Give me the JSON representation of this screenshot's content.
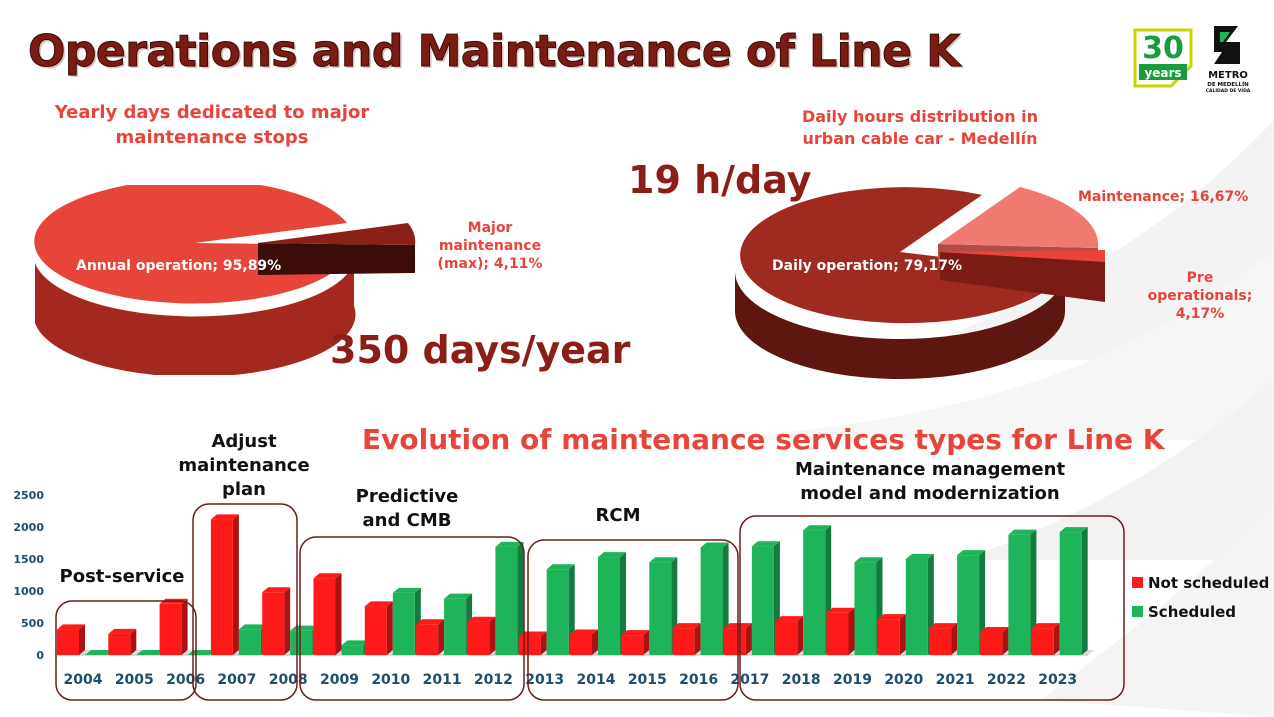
{
  "title": "Operations and Maintenance of Line K",
  "logos": {
    "anniversary_number": "30",
    "anniversary_word": "years",
    "metro_name_1": "METRO",
    "metro_name_2": "DE MEDELLÍN",
    "metro_tagline": "CALIDAD DE VIDA"
  },
  "colors": {
    "not_scheduled": "#ff1a1a",
    "scheduled": "#1eb45a",
    "pie_red": "#e8453a",
    "pie_dark": "#9e2a20",
    "pie_pink": "#ee7a70",
    "title": "#7a1c14",
    "frame": "#6b1e1a"
  },
  "chart_data": [
    {
      "type": "pie",
      "title": "Yearly days dedicated to major maintenance stops",
      "slices": [
        {
          "label_text": "Annual operation; 95,89%",
          "name": "Annual operation",
          "value": 95.89
        },
        {
          "label_text": "Major maintenance (max); 4,11%",
          "name": "Major maintenance (max)",
          "value": 4.11
        }
      ],
      "annotation": "350 days/year"
    },
    {
      "type": "pie",
      "title": "Daily hours distribution in urban cable car - Medellín",
      "slices": [
        {
          "label_text": "Daily operation; 79,17%",
          "name": "Daily operation",
          "value": 79.17
        },
        {
          "label_text": "Maintenance; 16,67%",
          "name": "Maintenance",
          "value": 16.67
        },
        {
          "label_text": "Pre operationals; 4,17%",
          "name": "Pre operationals",
          "value": 4.17
        }
      ],
      "annotation": "19 h/day"
    },
    {
      "type": "bar",
      "title": "Evolution of maintenance services types for Line K",
      "categories": [
        "2004",
        "2005",
        "2006",
        "2007",
        "2008",
        "2009",
        "2010",
        "2011",
        "2012",
        "2013",
        "2014",
        "2015",
        "2016",
        "2017",
        "2018",
        "2019",
        "2020",
        "2021",
        "2022",
        "2023"
      ],
      "series": [
        {
          "name": "Not scheduled",
          "values": [
            400,
            330,
            800,
            2120,
            980,
            1200,
            760,
            480,
            520,
            290,
            320,
            310,
            420,
            420,
            530,
            660,
            560,
            420,
            360,
            420
          ]
        },
        {
          "name": "Scheduled",
          "values": [
            0,
            0,
            0,
            400,
            380,
            150,
            970,
            880,
            1690,
            1340,
            1530,
            1450,
            1680,
            1700,
            1950,
            1450,
            1500,
            1560,
            1880,
            1920
          ]
        }
      ],
      "ylim": [
        0,
        2500
      ],
      "yticks": [
        "0",
        "500",
        "1000",
        "1500",
        "2000",
        "2500"
      ],
      "legend_position": "right",
      "phases": [
        {
          "label_lines": [
            "Post-service"
          ]
        },
        {
          "label_lines": [
            "Adjust",
            "maintenance",
            "plan"
          ]
        },
        {
          "label_lines": [
            "Predictive",
            "and CMB"
          ]
        },
        {
          "label_lines": [
            "RCM"
          ]
        },
        {
          "label_lines": [
            "Maintenance management",
            "model and modernization"
          ]
        }
      ]
    }
  ]
}
